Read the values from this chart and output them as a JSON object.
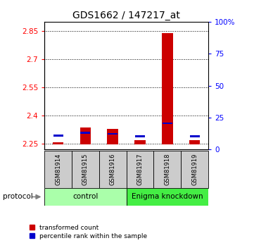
{
  "title": "GDS1662 / 147217_at",
  "samples": [
    "GSM81914",
    "GSM81915",
    "GSM81916",
    "GSM81917",
    "GSM81918",
    "GSM81919"
  ],
  "red_values": [
    2.258,
    2.338,
    2.328,
    2.27,
    2.84,
    2.268
  ],
  "blue_values": [
    2.29,
    2.303,
    2.298,
    2.285,
    2.355,
    2.285
  ],
  "ylim_left": [
    2.22,
    2.9
  ],
  "ylim_right": [
    0,
    100
  ],
  "yticks_left": [
    2.25,
    2.4,
    2.55,
    2.7,
    2.85
  ],
  "yticks_right": [
    0,
    25,
    50,
    75,
    100
  ],
  "ytick_labels_left": [
    "2.25",
    "2.4",
    "2.55",
    "2.7",
    "2.85"
  ],
  "ytick_labels_right": [
    "0",
    "25",
    "50",
    "75",
    "100%"
  ],
  "baseline": 2.248,
  "control_label": "control",
  "knockdown_label": "Enigma knockdown",
  "protocol_label": "protocol",
  "legend_red": "transformed count",
  "legend_blue": "percentile rank within the sample",
  "bar_width": 0.4,
  "red_color": "#cc0000",
  "blue_color": "#0000cc",
  "control_bg": "#aaffaa",
  "knockdown_bg": "#44ee44",
  "sample_bg": "#cccccc",
  "title_fontsize": 10,
  "tick_fontsize": 7.5,
  "label_fontsize": 7.5
}
